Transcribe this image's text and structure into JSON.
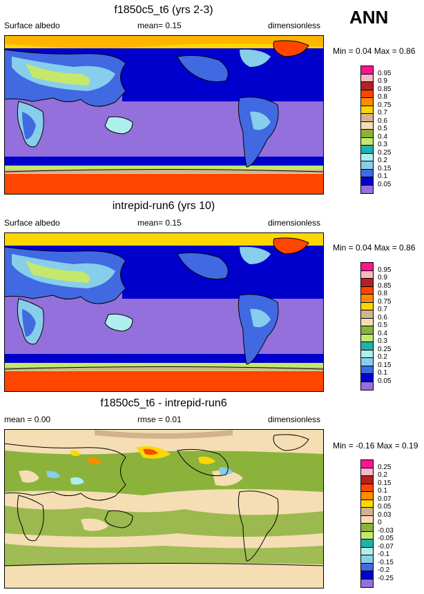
{
  "season": "ANN",
  "panels": [
    {
      "title": "f1850c5_t6 (yrs 2-3)",
      "left_label": "Surface albedo",
      "mean_text": "mean=  0.15",
      "units": "dimensionless",
      "minmax_text": "Min =  0.04 Max =  0.86",
      "colorbar": {
        "labels": [
          "0.95",
          "0.9",
          "0.85",
          "0.8",
          "0.75",
          "0.7",
          "0.6",
          "0.5",
          "0.4",
          "0.3",
          "0.25",
          "0.2",
          "0.15",
          "0.1",
          "0.05"
        ],
        "colors": [
          "#ff1493",
          "#ffb6c1",
          "#b22222",
          "#ff4500",
          "#ff8c00",
          "#ffd700",
          "#d2b48c",
          "#f5deb3",
          "#8bb33c",
          "#c5e86c",
          "#20b2aa",
          "#afeeee",
          "#87ceeb",
          "#4169e1",
          "#0000cd",
          "#9370db"
        ]
      }
    },
    {
      "title": "intrepid-run6 (yrs 10)",
      "left_label": "Surface albedo",
      "mean_text": "mean=  0.15",
      "units": "dimensionless",
      "minmax_text": "Min =  0.04 Max =  0.86",
      "colorbar": {
        "labels": [
          "0.95",
          "0.9",
          "0.85",
          "0.8",
          "0.75",
          "0.7",
          "0.6",
          "0.5",
          "0.4",
          "0.3",
          "0.25",
          "0.2",
          "0.15",
          "0.1",
          "0.05"
        ],
        "colors": [
          "#ff1493",
          "#ffb6c1",
          "#b22222",
          "#ff4500",
          "#ff8c00",
          "#ffd700",
          "#d2b48c",
          "#f5deb3",
          "#8bb33c",
          "#c5e86c",
          "#20b2aa",
          "#afeeee",
          "#87ceeb",
          "#4169e1",
          "#0000cd",
          "#9370db"
        ]
      }
    },
    {
      "title": "f1850c5_t6 - intrepid-run6",
      "left_label": "mean =  0.00",
      "mean_text": "rmse =  0.01",
      "units": "dimensionless",
      "minmax_text": "Min =  -0.16 Max =  0.19",
      "colorbar": {
        "labels": [
          "0.25",
          "0.2",
          "0.15",
          "0.1",
          "0.07",
          "0.05",
          "0.03",
          "0",
          "-0.03",
          "-0.05",
          "-0.07",
          "-0.1",
          "-0.15",
          "-0.2",
          "-0.25"
        ],
        "colors": [
          "#ff1493",
          "#ffb6c1",
          "#b22222",
          "#ff4500",
          "#ff8c00",
          "#ffd700",
          "#d2b48c",
          "#f5deb3",
          "#8bb33c",
          "#c5e86c",
          "#20b2aa",
          "#afeeee",
          "#87ceeb",
          "#4169e1",
          "#0000cd",
          "#9370db"
        ]
      }
    }
  ]
}
